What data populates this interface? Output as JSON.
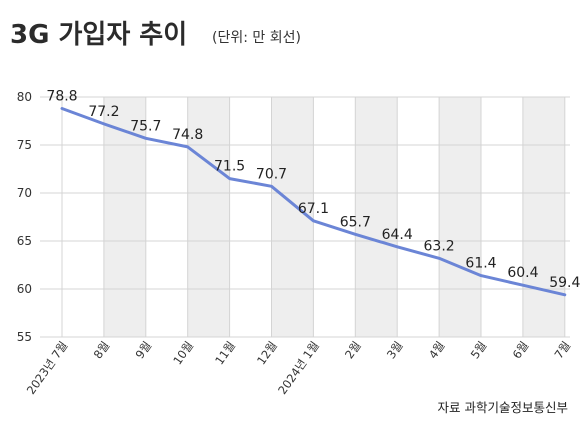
{
  "header": {
    "title": "3G 가입자 추이",
    "unit": "(단위: 만 회선)"
  },
  "footer": {
    "source": "자료 과학기술정보통신부"
  },
  "colors": {
    "line": "#6b85d6",
    "grid": "#d4d4d4",
    "band": "#eeeeee"
  },
  "chart_data": {
    "type": "line",
    "title": "3G 가입자 추이",
    "subtitle": "(단위: 만 회선)",
    "categories": [
      "2023년 7월",
      "8월",
      "9월",
      "10월",
      "11월",
      "12월",
      "2024년 1월",
      "2월",
      "3월",
      "4월",
      "5월",
      "6월",
      "7월"
    ],
    "series": [
      {
        "values": [
          78.8,
          77.2,
          75.7,
          74.8,
          71.5,
          70.7,
          67.1,
          65.7,
          64.4,
          63.2,
          61.4,
          60.4,
          59.4
        ]
      }
    ],
    "ylim": [
      55,
      80
    ],
    "yticks": [
      55,
      60,
      65,
      70,
      75,
      80
    ],
    "grid": true,
    "data_labels": true,
    "source": "자료 과학기술정보통신부"
  }
}
